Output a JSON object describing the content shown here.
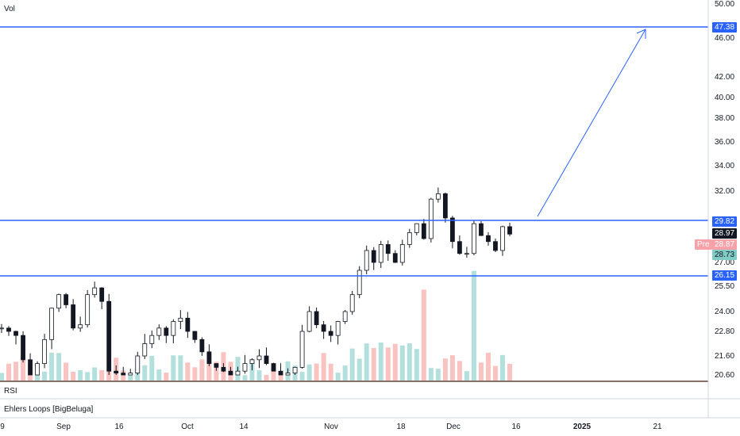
{
  "panes": {
    "volume_label": "Vol",
    "rsi_label": "RSI",
    "loops_label": "Ehlers Loops [BigBeluga]"
  },
  "price_axis": {
    "ticks": [
      "50.00",
      "46.00",
      "42.00",
      "40.00",
      "38.00",
      "36.00",
      "34.00",
      "32.00",
      "27.00",
      "25.50",
      "24.00",
      "22.80",
      "21.60",
      "20.60"
    ]
  },
  "levels": {
    "resistance_high": "47.38",
    "resistance": "29.82",
    "support": "26.15"
  },
  "tags": {
    "last_price": "28.97",
    "pre_label": "Pre",
    "pre_price": "28.87",
    "prev_close": "28.73"
  },
  "time_axis": {
    "ticks": [
      "9",
      "Sep",
      "16",
      "Oct",
      "14",
      "Nov",
      "18",
      "Dec",
      "16",
      "2025",
      "21"
    ]
  },
  "colors": {
    "line": "#2962ff",
    "up": "#26a69a",
    "down": "#ef5350",
    "candle": "#131722"
  },
  "chart_data": {
    "type": "candlestick",
    "series": [
      {
        "values": [
          23.0,
          22.8,
          22.6,
          21.4,
          20.6,
          21.2,
          22.4,
          24.2,
          25.0,
          24.4,
          23.0,
          23.2,
          25.0,
          25.4,
          24.6,
          20.8,
          20.7,
          20.6,
          20.7,
          21.6,
          22.2,
          22.6,
          23.0,
          22.6,
          23.4,
          23.6,
          22.8,
          22.4,
          21.8,
          21.2,
          21.0,
          20.8,
          20.6,
          20.8,
          21.2,
          21.4,
          21.6,
          21.2,
          20.8,
          20.6,
          20.7,
          21.0,
          22.8,
          24.0,
          23.2,
          22.8,
          22.6,
          23.4,
          24.0,
          25.0,
          26.5,
          27.8,
          27.0,
          28.2,
          27.6,
          27.0,
          28.2,
          29.0,
          29.6,
          28.6,
          31.4,
          31.8,
          30.0,
          28.4,
          27.6,
          27.6,
          29.6,
          28.8,
          28.4,
          27.8,
          29.4,
          28.9
        ]
      }
    ]
  }
}
